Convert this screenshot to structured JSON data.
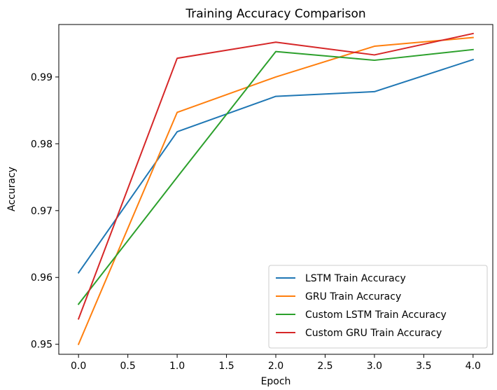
{
  "chart_data": {
    "type": "line",
    "title": "Training Accuracy Comparison",
    "xlabel": "Epoch",
    "ylabel": "Accuracy",
    "x": [
      0,
      1,
      2,
      3,
      4
    ],
    "xlim": [
      -0.2,
      4.2
    ],
    "ylim": [
      0.9485,
      0.99785
    ],
    "xticks": [
      0.0,
      0.5,
      1.0,
      1.5,
      2.0,
      2.5,
      3.0,
      3.5,
      4.0
    ],
    "xtick_labels": [
      "0.0",
      "0.5",
      "1.0",
      "1.5",
      "2.0",
      "2.5",
      "3.0",
      "3.5",
      "4.0"
    ],
    "yticks": [
      0.95,
      0.96,
      0.97,
      0.98,
      0.99
    ],
    "ytick_labels": [
      "0.95",
      "0.96",
      "0.97",
      "0.98",
      "0.99"
    ],
    "grid": false,
    "legend_position": "bottom-right",
    "series": [
      {
        "name": "LSTM Train Accuracy",
        "color": "#1f77b4",
        "values": [
          0.9607,
          0.9818,
          0.9871,
          0.9878,
          0.9926
        ]
      },
      {
        "name": "GRU Train Accuracy",
        "color": "#ff7f0e",
        "values": [
          0.95,
          0.9847,
          0.99,
          0.9946,
          0.9959
        ]
      },
      {
        "name": "Custom LSTM Train Accuracy",
        "color": "#2ca02c",
        "values": [
          0.956,
          0.975,
          0.9938,
          0.9925,
          0.9941
        ]
      },
      {
        "name": "Custom GRU Train Accuracy",
        "color": "#d62728",
        "values": [
          0.9538,
          0.9928,
          0.9952,
          0.9933,
          0.9965
        ]
      }
    ]
  }
}
